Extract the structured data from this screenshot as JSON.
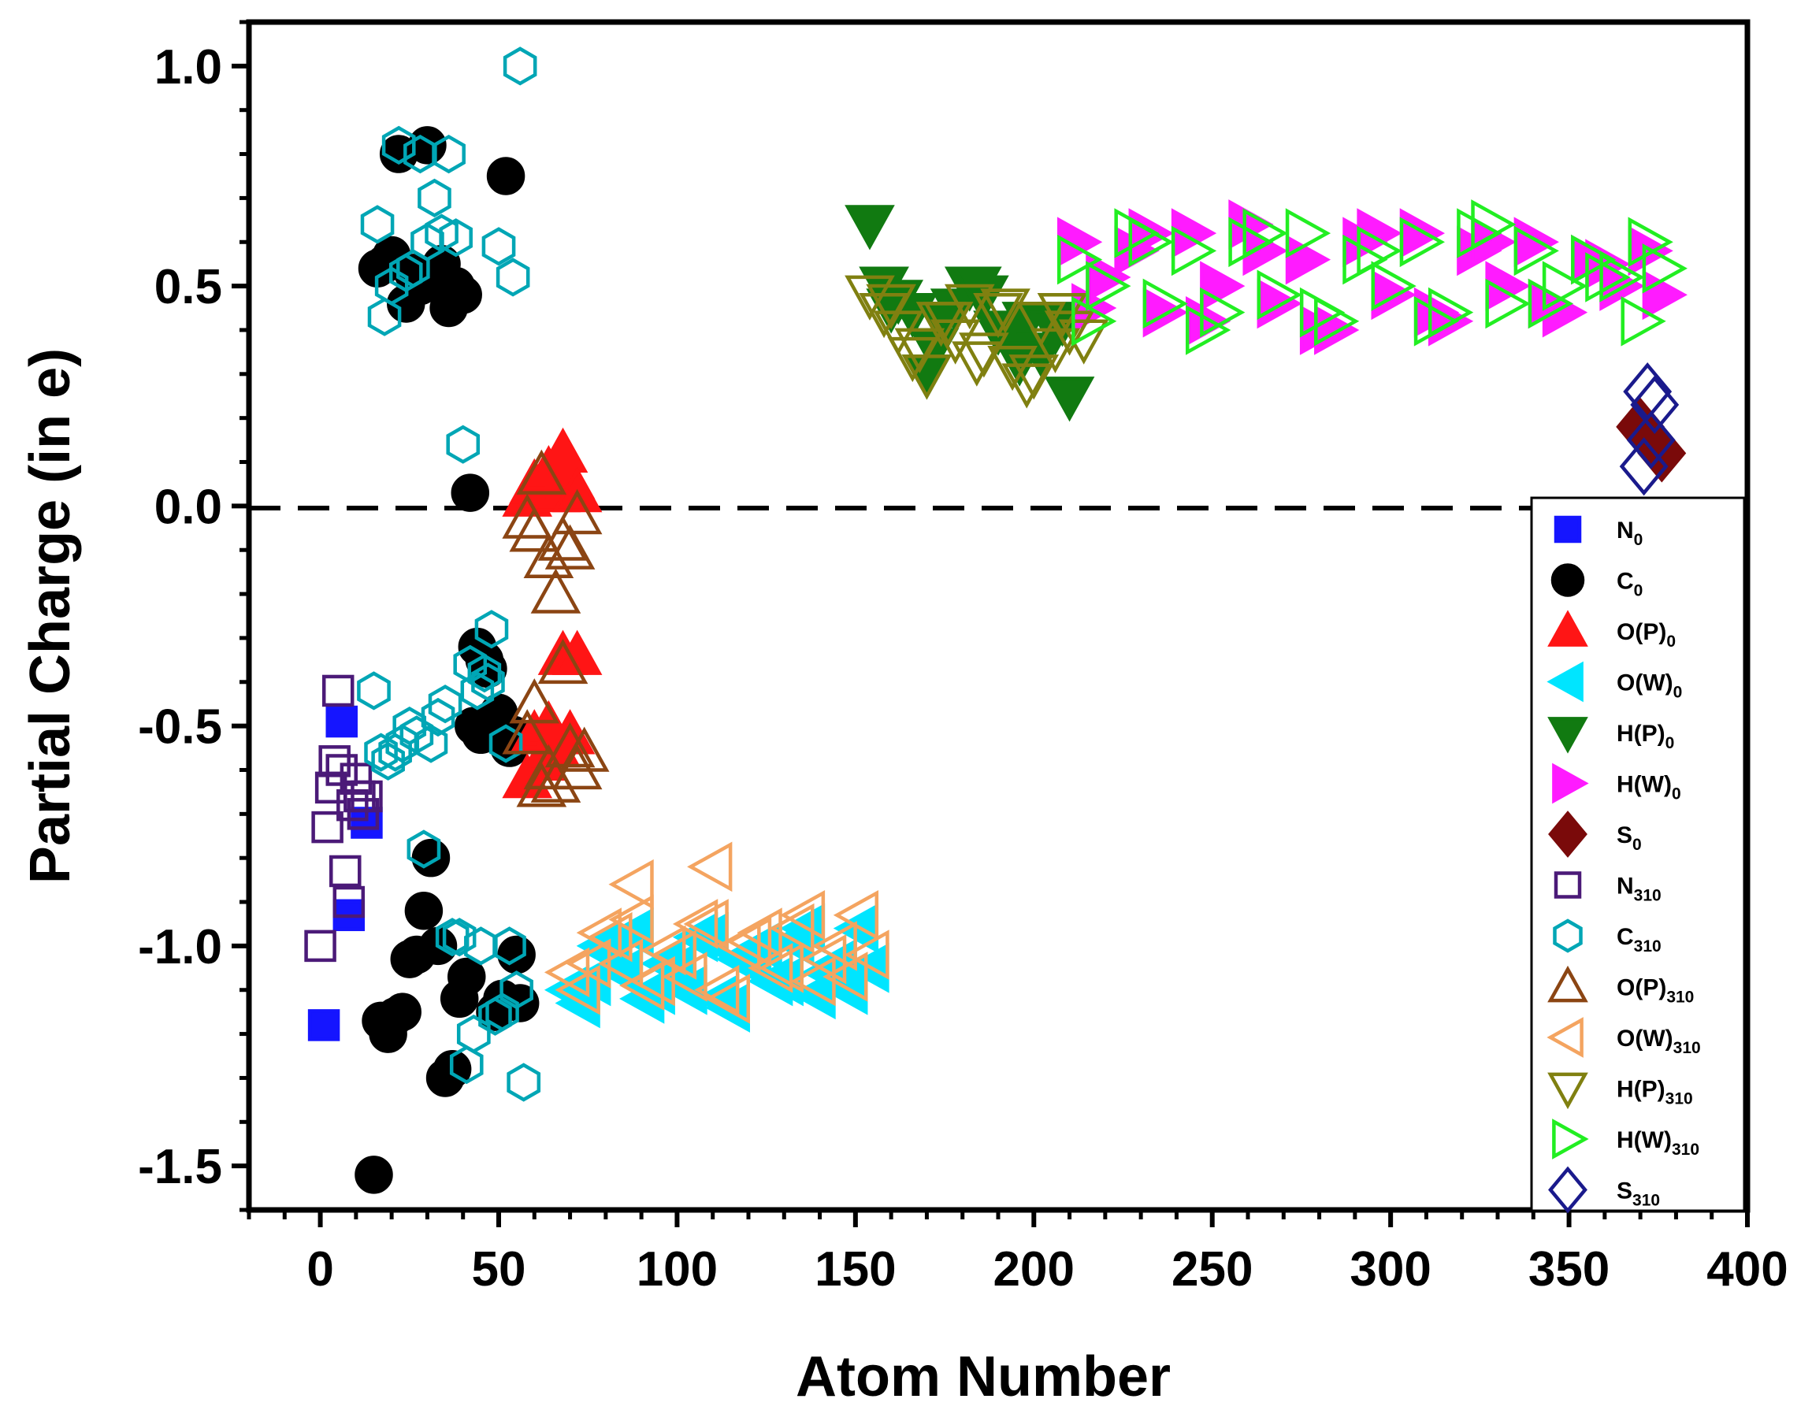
{
  "chart_data": {
    "type": "scatter",
    "xlabel": "Atom Number",
    "ylabel": "Partial Charge (in e)",
    "xlim": [
      -20,
      400
    ],
    "ylim": [
      -1.6,
      1.1
    ],
    "xticks": [
      0,
      50,
      100,
      150,
      200,
      250,
      300,
      350,
      400
    ],
    "yticks": [
      -1.5,
      -1.0,
      -0.5,
      0.0,
      0.5,
      1.0
    ],
    "xtick_labels": [
      "0",
      "50",
      "100",
      "150",
      "200",
      "250",
      "300",
      "350",
      "400"
    ],
    "ytick_labels": [
      "-1.5",
      "-1.0",
      "-0.5",
      "0.0",
      "0.5",
      "1.0"
    ],
    "reference_line": {
      "y": 0.0,
      "style": "dashed",
      "color": "#000000"
    },
    "legend_position": "bottom-right",
    "series": [
      {
        "name": "N0",
        "label": "N",
        "sub": "0",
        "marker": "square",
        "filled": true,
        "color": "#1515ff",
        "x": [
          1,
          6,
          8,
          13
        ],
        "y": [
          -1.18,
          -0.49,
          -0.93,
          -0.72
        ]
      },
      {
        "name": "C0",
        "label": "C",
        "sub": "0",
        "marker": "circle",
        "filled": true,
        "color": "#000000",
        "x": [
          16,
          18,
          20,
          22,
          24,
          26,
          28,
          30,
          32,
          34,
          36,
          38,
          40,
          42,
          44,
          46,
          48,
          50,
          52,
          54,
          56,
          15,
          17,
          19,
          21,
          23,
          25,
          27,
          29,
          31,
          33,
          35,
          37,
          39,
          41,
          43,
          45,
          47,
          49,
          51,
          53,
          55
        ],
        "y": [
          0.54,
          0.55,
          0.57,
          0.8,
          0.46,
          0.53,
          0.5,
          0.82,
          0.52,
          0.55,
          0.45,
          0.5,
          0.48,
          0.03,
          -0.32,
          -0.35,
          -0.5,
          -0.47,
          0.75,
          -0.52,
          -1.13,
          -1.52,
          -1.17,
          -1.2,
          -1.16,
          -1.15,
          -1.03,
          -1.02,
          -0.92,
          -0.8,
          -1.0,
          -1.3,
          -1.28,
          -1.12,
          -1.07,
          -0.5,
          -0.52,
          -0.37,
          -1.15,
          -1.12,
          -0.55,
          -1.02
        ]
      },
      {
        "name": "O(P)0",
        "label": "O(P)",
        "sub": "0",
        "marker": "triangle-up",
        "filled": true,
        "color": "#ff1515",
        "x": [
          58,
          60,
          62,
          64,
          66,
          68,
          70,
          72,
          60,
          64,
          68,
          72,
          58,
          62,
          66,
          70
        ],
        "y": [
          0.02,
          0.05,
          0.04,
          0.08,
          0.03,
          0.12,
          0.06,
          0.03,
          -0.52,
          -0.5,
          -0.34,
          -0.34,
          -0.62,
          -0.58,
          -0.55,
          -0.52
        ]
      },
      {
        "name": "O(W)0",
        "label": "O(W)",
        "sub": "0",
        "marker": "triangle-left",
        "filled": true,
        "color": "#00e5ff",
        "x": [
          70,
          76,
          82,
          88,
          94,
          100,
          106,
          112,
          118,
          124,
          130,
          136,
          142,
          148,
          154,
          73,
          79,
          85,
          91,
          97,
          103,
          109,
          115,
          121,
          127,
          133,
          139,
          145,
          151
        ],
        "y": [
          -1.1,
          -1.08,
          -1.02,
          -0.97,
          -1.1,
          -1.05,
          -0.98,
          -1.12,
          -1.03,
          -1.0,
          -1.08,
          -0.96,
          -1.06,
          -1.1,
          -1.05,
          -1.13,
          -1.0,
          -1.06,
          -1.12,
          -1.04,
          -1.1,
          -0.98,
          -1.14,
          -1.02,
          -1.08,
          -0.99,
          -1.11,
          -1.04,
          -0.96
        ]
      },
      {
        "name": "H(P)0",
        "label": "H(P)",
        "sub": "0",
        "marker": "triangle-down",
        "filled": true,
        "color": "#117a11",
        "x": [
          154,
          158,
          162,
          166,
          170,
          174,
          178,
          182,
          186,
          190,
          194,
          198,
          202,
          206,
          210,
          160,
          172,
          184,
          196,
          208
        ],
        "y": [
          0.64,
          0.5,
          0.47,
          0.44,
          0.3,
          0.42,
          0.45,
          0.5,
          0.48,
          0.4,
          0.38,
          0.42,
          0.35,
          0.4,
          0.25,
          0.45,
          0.36,
          0.5,
          0.33,
          0.42
        ]
      },
      {
        "name": "H(W)0",
        "label": "H(W)",
        "sub": "0",
        "marker": "triangle-right",
        "filled": true,
        "color": "#ff1bff",
        "x": [
          212,
          220,
          228,
          236,
          244,
          252,
          260,
          268,
          276,
          284,
          292,
          300,
          308,
          316,
          324,
          332,
          340,
          348,
          356,
          364,
          372,
          376,
          216,
          232,
          248,
          264,
          280,
          296,
          312,
          328,
          344,
          360
        ],
        "y": [
          0.6,
          0.52,
          0.58,
          0.44,
          0.62,
          0.5,
          0.64,
          0.46,
          0.56,
          0.4,
          0.6,
          0.48,
          0.62,
          0.42,
          0.58,
          0.5,
          0.6,
          0.44,
          0.56,
          0.5,
          0.58,
          0.48,
          0.45,
          0.62,
          0.42,
          0.58,
          0.4,
          0.62,
          0.44,
          0.6,
          0.46,
          0.55
        ]
      },
      {
        "name": "S0",
        "label": "S",
        "sub": "0",
        "marker": "diamond",
        "filled": true,
        "color": "#7a0a0a",
        "x": [
          370,
          376
        ],
        "y": [
          0.18,
          0.12
        ]
      },
      {
        "name": "N310",
        "label": "N",
        "sub": "310",
        "marker": "square",
        "filled": false,
        "color": "#4b1a78",
        "x": [
          0,
          2,
          3,
          4,
          5,
          6,
          7,
          8,
          9,
          10,
          11,
          12,
          13
        ],
        "y": [
          -1.0,
          -0.73,
          -0.64,
          -0.58,
          -0.42,
          -0.6,
          -0.83,
          -0.9,
          -0.68,
          -0.62,
          -0.66,
          -0.7,
          -0.66
        ]
      },
      {
        "name": "C310",
        "label": "C",
        "sub": "310",
        "marker": "hexagon",
        "filled": false,
        "color": "#00a6b5",
        "x": [
          16,
          18,
          20,
          22,
          24,
          26,
          28,
          30,
          32,
          34,
          36,
          38,
          40,
          42,
          44,
          46,
          48,
          50,
          52,
          54,
          56,
          15,
          17,
          19,
          21,
          23,
          25,
          27,
          29,
          31,
          33,
          35,
          37,
          39,
          41,
          43,
          45,
          47,
          49,
          51,
          53,
          55,
          57
        ],
        "y": [
          0.64,
          0.43,
          0.5,
          0.82,
          0.53,
          0.54,
          0.8,
          0.6,
          0.7,
          0.62,
          0.8,
          0.61,
          0.14,
          -0.36,
          -0.42,
          -0.38,
          -0.28,
          0.59,
          -0.54,
          0.52,
          1.0,
          -0.42,
          -0.56,
          -0.58,
          -0.56,
          -0.54,
          -0.5,
          -0.52,
          -0.78,
          -0.54,
          -0.48,
          -0.45,
          -0.98,
          -0.98,
          -1.27,
          -1.2,
          -1.0,
          -0.4,
          -1.16,
          -1.15,
          -1.0,
          -1.1,
          -1.31
        ]
      },
      {
        "name": "O(P)310",
        "label": "O(P)",
        "sub": "310",
        "marker": "triangle-up",
        "filled": false,
        "color": "#8b4513",
        "x": [
          58,
          60,
          62,
          64,
          66,
          68,
          70,
          72,
          60,
          64,
          68,
          72,
          58,
          62,
          66,
          70,
          74
        ],
        "y": [
          -0.03,
          -0.06,
          0.07,
          -0.12,
          -0.2,
          -0.08,
          -0.1,
          -0.02,
          -0.45,
          -0.6,
          -0.36,
          -0.6,
          -0.52,
          -0.64,
          -0.63,
          -0.55,
          -0.56
        ]
      },
      {
        "name": "O(W)310",
        "label": "O(W)",
        "sub": "310",
        "marker": "triangle-left",
        "filled": false,
        "color": "#f4a460",
        "x": [
          70,
          76,
          82,
          88,
          94,
          100,
          106,
          112,
          118,
          124,
          130,
          136,
          142,
          148,
          154,
          73,
          79,
          85,
          91,
          97,
          103,
          109,
          115,
          121,
          127,
          133,
          139,
          145,
          151,
          88,
          110
        ],
        "y": [
          -1.06,
          -1.04,
          -0.98,
          -0.94,
          -1.08,
          -1.02,
          -0.95,
          -1.1,
          -1.0,
          -0.97,
          -1.05,
          -0.93,
          -1.03,
          -1.07,
          -1.02,
          -1.1,
          -0.97,
          -1.04,
          -1.09,
          -1.01,
          -1.07,
          -0.95,
          -1.12,
          -0.99,
          -1.05,
          -0.96,
          -1.08,
          -1.0,
          -0.93,
          -0.86,
          -0.82
        ]
      },
      {
        "name": "H(P)310",
        "label": "H(P)",
        "sub": "310",
        "marker": "triangle-down",
        "filled": false,
        "color": "#808010",
        "x": [
          154,
          158,
          162,
          166,
          170,
          174,
          178,
          182,
          186,
          190,
          194,
          198,
          202,
          206,
          210,
          214,
          160,
          168,
          176,
          184,
          192,
          200,
          208
        ],
        "y": [
          0.48,
          0.44,
          0.4,
          0.34,
          0.3,
          0.42,
          0.38,
          0.46,
          0.35,
          0.44,
          0.32,
          0.28,
          0.42,
          0.36,
          0.4,
          0.38,
          0.46,
          0.36,
          0.42,
          0.33,
          0.45,
          0.3,
          0.44
        ]
      },
      {
        "name": "H(W)310",
        "label": "H(W)",
        "sub": "310",
        "marker": "triangle-right",
        "filled": false,
        "color": "#22ee22",
        "x": [
          212,
          220,
          228,
          236,
          244,
          252,
          260,
          268,
          276,
          284,
          292,
          300,
          308,
          316,
          324,
          332,
          340,
          348,
          356,
          364,
          372,
          376,
          216,
          232,
          248,
          264,
          280,
          296,
          312,
          328,
          344,
          360,
          370
        ],
        "y": [
          0.56,
          0.5,
          0.62,
          0.46,
          0.58,
          0.44,
          0.6,
          0.48,
          0.62,
          0.42,
          0.56,
          0.5,
          0.6,
          0.44,
          0.62,
          0.46,
          0.58,
          0.5,
          0.56,
          0.52,
          0.6,
          0.54,
          0.42,
          0.6,
          0.4,
          0.62,
          0.44,
          0.58,
          0.42,
          0.64,
          0.46,
          0.52,
          0.42
        ]
      },
      {
        "name": "S310",
        "label": "S",
        "sub": "310",
        "marker": "diamond",
        "filled": false,
        "color": "#1a1a8c",
        "x": [
          372,
          373,
          371,
          374
        ],
        "y": [
          0.26,
          0.15,
          0.09,
          0.23
        ]
      }
    ]
  }
}
